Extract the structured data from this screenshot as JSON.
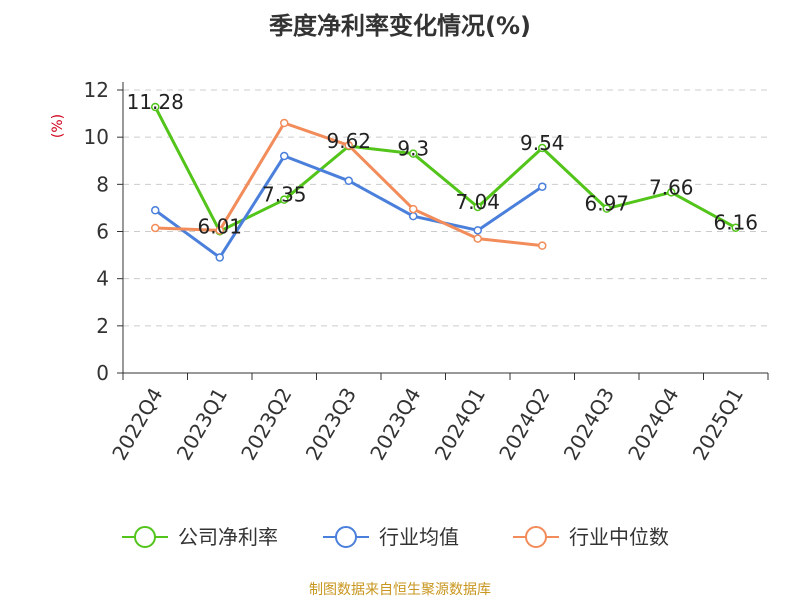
{
  "chart_data": {
    "type": "line",
    "title": "季度净利率变化情况(%)",
    "ylabel": "(%)",
    "xlabel": "",
    "ylim": [
      0,
      12
    ],
    "yticks": [
      0,
      2,
      4,
      6,
      8,
      10,
      12
    ],
    "grid": true,
    "legend_position": "bottom",
    "categories": [
      "2022Q4",
      "2023Q1",
      "2023Q2",
      "2023Q3",
      "2023Q4",
      "2024Q1",
      "2024Q2",
      "2024Q3",
      "2024Q4",
      "2025Q1"
    ],
    "series": [
      {
        "name": "公司净利率",
        "color": "#52c41a",
        "values": [
          11.28,
          6.01,
          7.35,
          9.62,
          9.3,
          7.04,
          9.54,
          6.97,
          7.66,
          6.16
        ],
        "labels": [
          "11.28",
          "6.01",
          "7.35",
          "9.62",
          "9.3",
          "7.04",
          "9.54",
          "6.97",
          "7.66",
          "6.16"
        ]
      },
      {
        "name": "行业均值",
        "color": "#4a7fdb",
        "values": [
          6.9,
          4.9,
          9.2,
          8.15,
          6.65,
          6.05,
          7.9,
          null,
          null,
          null
        ]
      },
      {
        "name": "行业中位数",
        "color": "#f28c5a",
        "values": [
          6.15,
          6.05,
          10.6,
          9.65,
          6.95,
          5.7,
          5.4,
          null,
          null,
          null
        ]
      }
    ]
  },
  "footer": {
    "source": "制图数据来自恒生聚源数据库"
  }
}
